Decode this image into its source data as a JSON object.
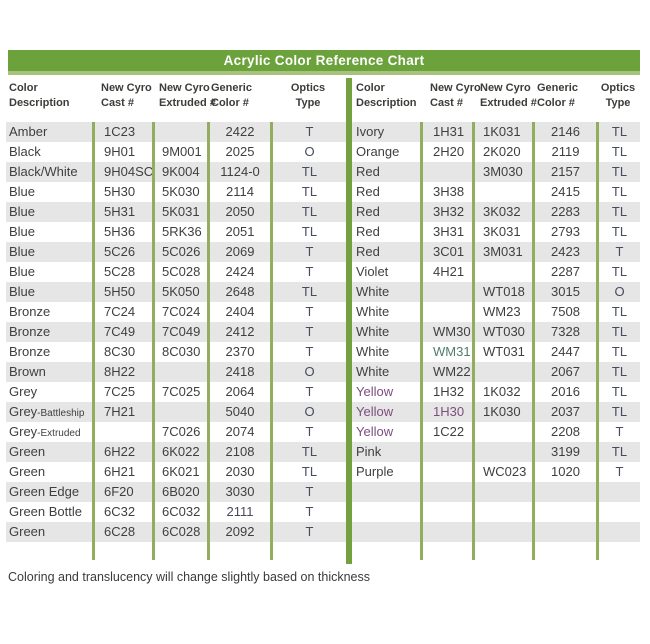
{
  "title": "Acrylic Color Reference Chart",
  "footnote": "Coloring and translucency will change slightly based on thickness",
  "colors": {
    "banner_green": "#6ba23c",
    "banner_underline": "#a7c27c",
    "divider_green": "#74a03f",
    "separator_green": "#93ad5e",
    "stripe_grey": "#e6e6e6",
    "optics_text": "#464b5d",
    "tint_purple": "#7b4e7e",
    "tint_teal": "#4f7d68",
    "tint_slate": "#50455f"
  },
  "left_table": {
    "headers": [
      {
        "line1": "Color",
        "line2": "Description"
      },
      {
        "line1": "New Cyro",
        "line2": "Cast #"
      },
      {
        "line1": "New Cyro",
        "line2": "Extruded #"
      },
      {
        "line1": "Generic",
        "line2": "Color #"
      },
      {
        "line1": "Optics",
        "line2": "Type"
      }
    ],
    "rows": [
      [
        "Amber",
        "1C23",
        "",
        "2422",
        "T"
      ],
      [
        "Black",
        "9H01",
        "9M001",
        "2025",
        "O"
      ],
      [
        "Black/White",
        "9H04SC",
        "9K004",
        "1124-0",
        "TL"
      ],
      [
        "Blue",
        "5H30",
        "5K030",
        "2114",
        "TL"
      ],
      [
        "Blue",
        "5H31",
        "5K031",
        "2050",
        "TL"
      ],
      [
        "Blue",
        "5H36",
        "5RK36",
        "2051",
        "TL"
      ],
      [
        "Blue",
        "5C26",
        "5C026",
        "2069",
        "T"
      ],
      [
        "Blue",
        "5C28",
        "5C028",
        "2424",
        "T"
      ],
      [
        "Blue",
        "5H50",
        "5K050",
        "2648",
        "TL"
      ],
      [
        "Bronze",
        "7C24",
        "7C024",
        "2404",
        "T"
      ],
      [
        "Bronze",
        "7C49",
        "7C049",
        "2412",
        "T"
      ],
      [
        "Bronze",
        "8C30",
        "8C030",
        "2370",
        "T"
      ],
      [
        "Brown",
        "8H22",
        "",
        "2418",
        "O"
      ],
      [
        "Grey",
        "7C25",
        "7C025",
        "2064",
        "T"
      ],
      [
        "Grey-Battleship",
        "7H21",
        "",
        "5040",
        "O"
      ],
      [
        "Grey-Extruded",
        "",
        "7C026",
        "2074",
        "T"
      ],
      [
        "Green",
        "6H22",
        "6K022",
        "2108",
        "TL"
      ],
      [
        "Green",
        "6H21",
        "6K021",
        "2030",
        "TL"
      ],
      [
        "Green Edge",
        "6F20",
        "6B020",
        "3030",
        "T"
      ],
      [
        "Green Bottle",
        "6C32",
        "6C032",
        "2111",
        "T"
      ],
      [
        "Green",
        "6C28",
        "6C028",
        "2092",
        "T"
      ]
    ],
    "trailing_empty_rows": 0
  },
  "right_table": {
    "headers": [
      {
        "line1": "Color",
        "line2": "Description"
      },
      {
        "line1": "New Cyro",
        "line2": "Cast #"
      },
      {
        "line1": "New Cyro",
        "line2": "Extruded #"
      },
      {
        "line1": "Generic",
        "line2": "Color #"
      },
      {
        "line1": "Optics",
        "line2": "Type"
      }
    ],
    "rows": [
      [
        "Ivory",
        "1H31",
        "1K031",
        "2146",
        "TL"
      ],
      [
        "Orange",
        "2H20",
        "2K020",
        "2119",
        "TL"
      ],
      [
        "Red",
        "",
        "3M030",
        "2157",
        "TL"
      ],
      [
        "Red",
        "3H38",
        "",
        "2415",
        "TL"
      ],
      [
        "Red",
        "3H32",
        "3K032",
        "2283",
        "TL"
      ],
      [
        "Red",
        "3H31",
        "3K031",
        "2793",
        "TL"
      ],
      [
        "Red",
        "3C01",
        "3M031",
        "2423",
        "T"
      ],
      [
        "Violet",
        "4H21",
        "",
        "2287",
        "TL"
      ],
      [
        "White",
        "",
        "WT018",
        "3015",
        "O"
      ],
      [
        "White",
        "",
        "WM23",
        "7508",
        "TL"
      ],
      [
        "White",
        "WM30",
        "WT030",
        "7328",
        "TL"
      ],
      [
        "White",
        "WM31",
        "WT031",
        "2447",
        "TL"
      ],
      [
        "White",
        "WM22",
        "",
        "2067",
        "TL"
      ],
      [
        "Yellow",
        "1H32",
        "1K032",
        "2016",
        "TL"
      ],
      [
        "Yellow",
        "1H30",
        "1K030",
        "2037",
        "TL"
      ],
      [
        "Yellow",
        "1C22",
        "",
        "2208",
        "T"
      ],
      [
        "Pink",
        "",
        "",
        "3199",
        "TL"
      ],
      [
        "Purple",
        "",
        "WC023",
        "1020",
        "T"
      ]
    ],
    "trailing_empty_rows": 3
  },
  "tinted_cells": [
    {
      "table": "right_table",
      "row": 13,
      "col": 0,
      "color": "#7b4e7e"
    },
    {
      "table": "right_table",
      "row": 14,
      "col": 0,
      "color": "#7b4e7e"
    },
    {
      "table": "right_table",
      "row": 15,
      "col": 0,
      "color": "#7b4e7e"
    },
    {
      "table": "right_table",
      "row": 14,
      "col": 1,
      "color": "#7b4e7e"
    },
    {
      "table": "right_table",
      "row": 11,
      "col": 1,
      "color": "#4f7d68"
    },
    {
      "table": "left_table",
      "row": 19,
      "col": 3,
      "color": "#50455f"
    }
  ]
}
